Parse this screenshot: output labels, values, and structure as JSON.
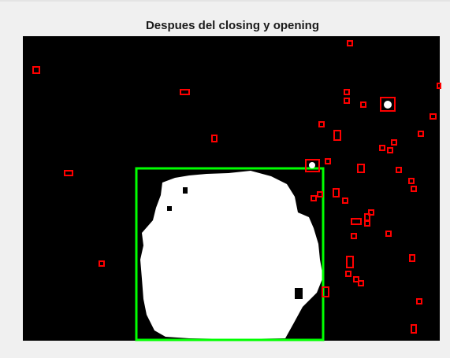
{
  "figure": {
    "title": "Despues del closing y opening"
  }
}
